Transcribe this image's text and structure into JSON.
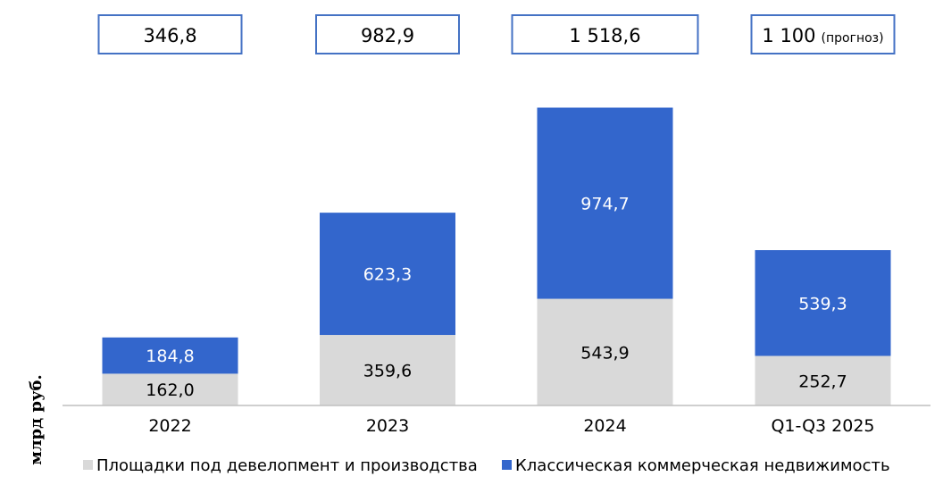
{
  "chart_data": {
    "type": "bar",
    "stacked": true,
    "title": "",
    "xlabel": "",
    "ylabel": "млрд руб.",
    "ylim": [
      0,
      1600
    ],
    "grid": false,
    "legend_position": "bottom",
    "categories": [
      "2022",
      "2023",
      "2024",
      "Q1-Q3 2025"
    ],
    "series": [
      {
        "name": "Площадки под девелопмент и производства",
        "color": "#d9d9d9",
        "label_color": "#000000",
        "values": [
          162.0,
          359.6,
          543.9,
          252.7
        ],
        "labels": [
          "162,0",
          "359,6",
          "543,9",
          "252,7"
        ]
      },
      {
        "name": "Классическая коммерческая недвижимость",
        "color": "#3366cc",
        "label_color": "#ffffff",
        "values": [
          184.8,
          623.3,
          974.7,
          539.3
        ],
        "labels": [
          "184,8",
          "623,3",
          "974,7",
          "539,3"
        ]
      }
    ],
    "totals": [
      {
        "value": "346,8",
        "note": ""
      },
      {
        "value": "982,9",
        "note": ""
      },
      {
        "value": "1 518,6",
        "note": ""
      },
      {
        "value": "1 100",
        "note": "(прогноз)"
      }
    ]
  },
  "colors": {
    "axis": "#bfbfbf",
    "box_border": "#4472c4"
  }
}
